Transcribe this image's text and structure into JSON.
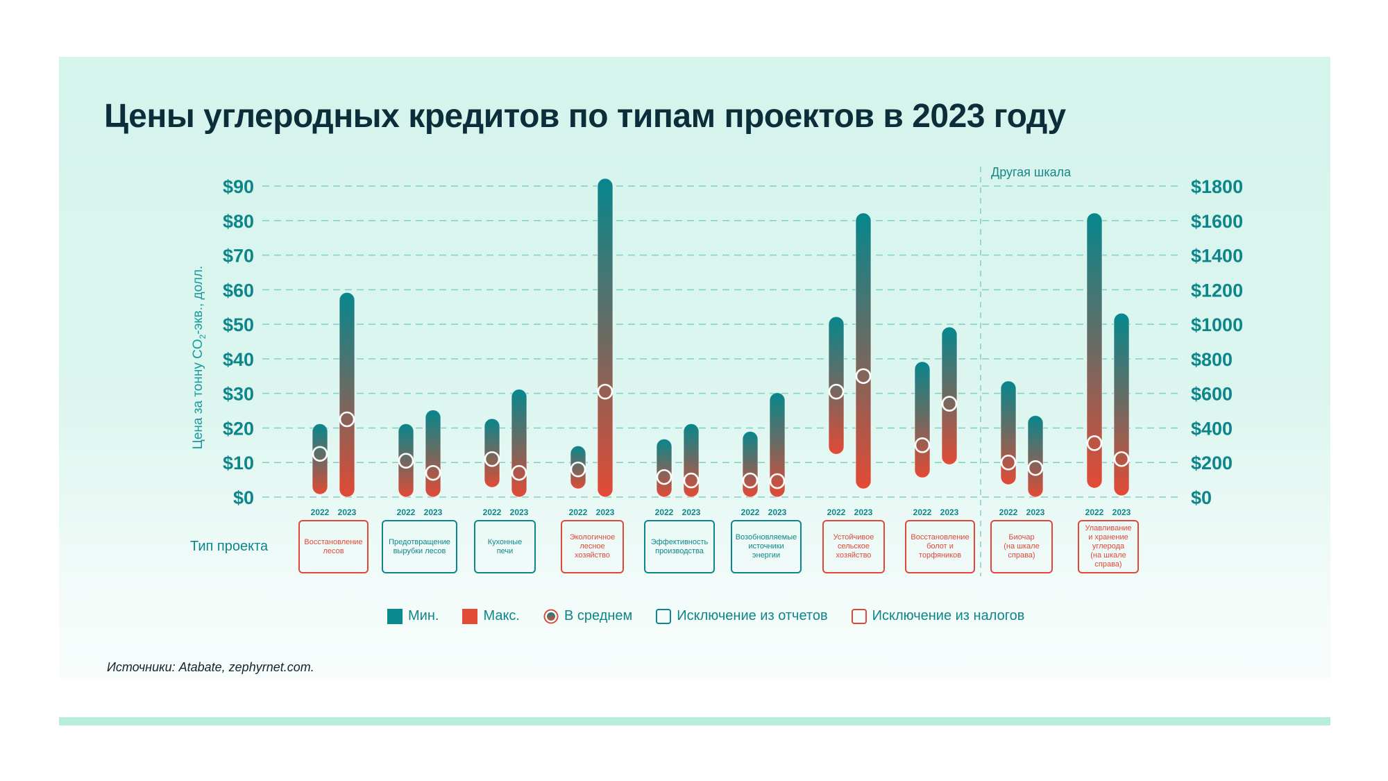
{
  "title": "Цены углеродных кредитов по типам проектов в 2023 году",
  "colors": {
    "min": "#0a8a8e",
    "max": "#e14b37",
    "report_exclusion": "#0d868b",
    "tax_exclusion": "#e0473a",
    "accent_text": "#0d868b"
  },
  "chart_data": {
    "type": "range-bar",
    "title": "Цены углеродных кредитов по типам проектов в 2023 году",
    "ylabel": "Цена за тонну CO₂-экв., долл.",
    "ylabel_main": "Цена за тонну CO",
    "ylabel_sub": "2",
    "ylabel_tail": "-экв., долл.",
    "ylim_left": [
      0,
      90
    ],
    "ylim_right": [
      0,
      1800
    ],
    "left_ticks": [
      "$0",
      "$10",
      "$20",
      "$30",
      "$40",
      "$50",
      "$60",
      "$70",
      "$80",
      "$90"
    ],
    "right_ticks": [
      "$0",
      "$200",
      "$400",
      "$600",
      "$800",
      "$1000",
      "$1200",
      "$1400",
      "$1600",
      "$1800"
    ],
    "other_scale_label": "Другая шкала",
    "x_axis_label": "Тип проекта",
    "grid": true,
    "years": [
      "2022",
      "2023"
    ],
    "groups": [
      {
        "label": "Восстановление лесов",
        "category": "tax",
        "scale": "left",
        "bars": [
          {
            "year": "2022",
            "min": 3,
            "max": 19,
            "avg": 12.5
          },
          {
            "year": "2023",
            "min": 0.3,
            "max": 57,
            "avg": 22.5
          }
        ]
      },
      {
        "label": "Предотвращение вырубки лесов",
        "category": "report",
        "scale": "left",
        "bars": [
          {
            "year": "2022",
            "min": 0.3,
            "max": 19,
            "avg": 10.5
          },
          {
            "year": "2023",
            "min": 0.3,
            "max": 23,
            "avg": 7
          }
        ]
      },
      {
        "label": "Кухонные печи",
        "category": "report",
        "scale": "left",
        "bars": [
          {
            "year": "2022",
            "min": 5,
            "max": 20.5,
            "avg": 11
          },
          {
            "year": "2023",
            "min": 0.3,
            "max": 29,
            "avg": 7
          }
        ]
      },
      {
        "label": "Экологичное лесное хозяйство",
        "category": "tax",
        "scale": "left",
        "bars": [
          {
            "year": "2022",
            "min": 4.6,
            "max": 12.6,
            "avg": 8
          },
          {
            "year": "2023",
            "min": 0.3,
            "max": 90,
            "avg": 30.5
          }
        ]
      },
      {
        "label": "Эффективность производства",
        "category": "report",
        "scale": "left",
        "bars": [
          {
            "year": "2022",
            "min": 0.3,
            "max": 14.6,
            "avg": 5.8
          },
          {
            "year": "2023",
            "min": 0.3,
            "max": 19,
            "avg": 4.8
          }
        ]
      },
      {
        "label": "Возобновляемые источники энергии",
        "category": "report",
        "scale": "left",
        "bars": [
          {
            "year": "2022",
            "min": 0.3,
            "max": 16.8,
            "avg": 4.8
          },
          {
            "year": "2023",
            "min": 0.3,
            "max": 28,
            "avg": 4.6
          }
        ]
      },
      {
        "label": "Устойчивое сельское хозяйство",
        "category": "tax",
        "scale": "left",
        "bars": [
          {
            "year": "2022",
            "min": 14.6,
            "max": 50,
            "avg": 30.5
          },
          {
            "year": "2023",
            "min": 4.6,
            "max": 80,
            "avg": 35
          }
        ]
      },
      {
        "label": "Восстановление болот и торфяников",
        "category": "tax",
        "scale": "left",
        "bars": [
          {
            "year": "2022",
            "min": 7.8,
            "max": 37,
            "avg": 15
          },
          {
            "year": "2023",
            "min": 11.6,
            "max": 47,
            "avg": 27
          }
        ]
      },
      {
        "label": "Биочар (на шкале справа)",
        "category": "tax",
        "scale": "right",
        "bars": [
          {
            "year": "2022",
            "min": 116,
            "max": 628,
            "avg": 200
          },
          {
            "year": "2023",
            "min": 6,
            "max": 428,
            "avg": 168
          }
        ]
      },
      {
        "label": "Улавливание и хранение углерода (на шкале справа)",
        "category": "tax",
        "scale": "right",
        "bars": [
          {
            "year": "2022",
            "min": 96,
            "max": 1600,
            "avg": 312
          },
          {
            "year": "2023",
            "min": 52,
            "max": 1020,
            "avg": 220
          }
        ]
      }
    ],
    "legend": [
      "Мин.",
      "Макс.",
      "В среднем",
      "Исключение из отчетов",
      "Исключение из налогов"
    ],
    "legend_position": "bottom"
  },
  "groups_text": [
    [
      "Восстановление",
      "лесов"
    ],
    [
      "Предотвращение",
      "вырубки лесов"
    ],
    [
      "Кухонные",
      "печи"
    ],
    [
      "Экологичное",
      "лесное",
      "хозяйство"
    ],
    [
      "Эффективность",
      "производства"
    ],
    [
      "Возобновляемые",
      "источники",
      "энергии"
    ],
    [
      "Устойчивое",
      "сельское",
      "хозяйство"
    ],
    [
      "Восстановление",
      "болот и",
      "торфяников"
    ],
    [
      "Биочар",
      "(на шкале",
      "справа)"
    ],
    [
      "Улавливание",
      "и хранение",
      "углерода",
      "(на шкале",
      "справа)"
    ]
  ],
  "legend": {
    "min": "Мин.",
    "max": "Макс.",
    "avg": "В среднем",
    "report": "Исключение из отчетов",
    "tax": "Исключение из налогов"
  },
  "source": "Источники: Atabate, zephyrnet.com."
}
